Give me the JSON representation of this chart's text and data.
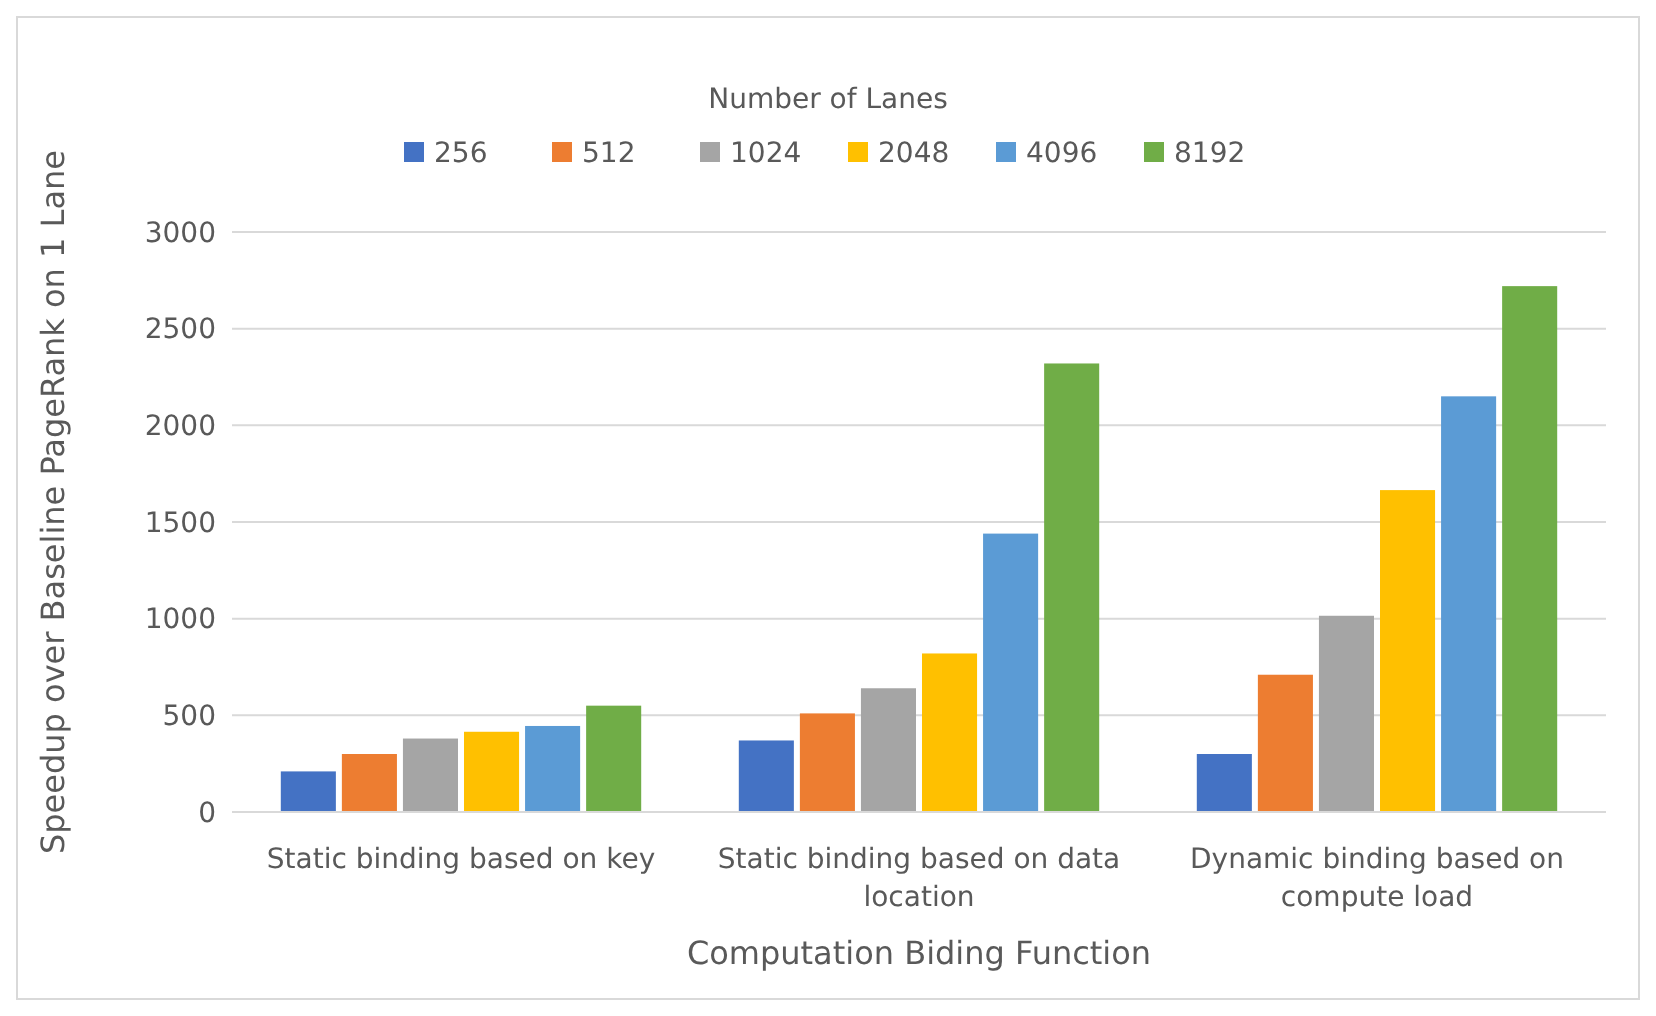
{
  "chart_data": {
    "type": "bar",
    "xlabel": "Computation Biding Function",
    "ylabel": "Speedup over Baseline PageRank on 1 Lane",
    "legend_title": "Number of Lanes",
    "categories": [
      "Static binding based on key",
      "Static binding based on data location",
      "Dynamic binding based on compute load"
    ],
    "series": [
      {
        "name": "256",
        "color": "#4472c4",
        "values": [
          210,
          370,
          300
        ]
      },
      {
        "name": "512",
        "color": "#ed7d31",
        "values": [
          300,
          510,
          710
        ]
      },
      {
        "name": "1024",
        "color": "#a5a5a5",
        "values": [
          380,
          640,
          1015
        ]
      },
      {
        "name": "2048",
        "color": "#ffc000",
        "values": [
          415,
          820,
          1665
        ]
      },
      {
        "name": "4096",
        "color": "#5b9bd5",
        "values": [
          445,
          1440,
          2150
        ]
      },
      {
        "name": "8192",
        "color": "#70ad47",
        "values": [
          550,
          2320,
          2720
        ]
      }
    ],
    "ylim": [
      0,
      3000
    ],
    "yticks": [
      0,
      500,
      1000,
      1500,
      2000,
      2500,
      3000
    ],
    "grid": "y",
    "legend": "top"
  }
}
